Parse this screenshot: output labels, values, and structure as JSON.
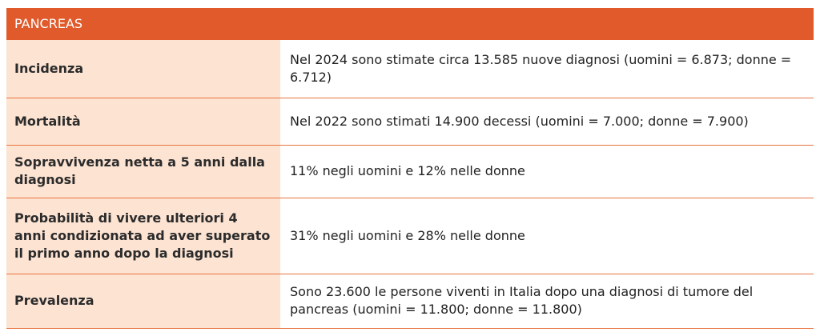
{
  "header": {
    "title": "PANCREAS"
  },
  "table": {
    "rows": [
      [
        "Incidenza",
        "Nel 2024 sono stimate circa 13.585 nuove diagnosi (uomini = 6.873; donne = 6.712)"
      ],
      [
        "Mortalità",
        "Nel 2022 sono stimati 14.900 decessi (uomini = 7.000; donne = 7.900)"
      ],
      [
        "Sopravvivenza netta a 5 anni dalla diagnosi",
        "11% negli uomini e 12% nelle donne"
      ],
      [
        "Probabilità di vivere ulteriori 4 anni condizionata ad aver superato il primo anno dopo la diagnosi",
        "31% negli uomini e 28% nelle donne"
      ],
      [
        "Prevalenza",
        "Sono 23.600 le persone viventi in Italia dopo una diagnosi di tumore del pancreas (uomini = 11.800; donne = 11.800)"
      ]
    ]
  }
}
